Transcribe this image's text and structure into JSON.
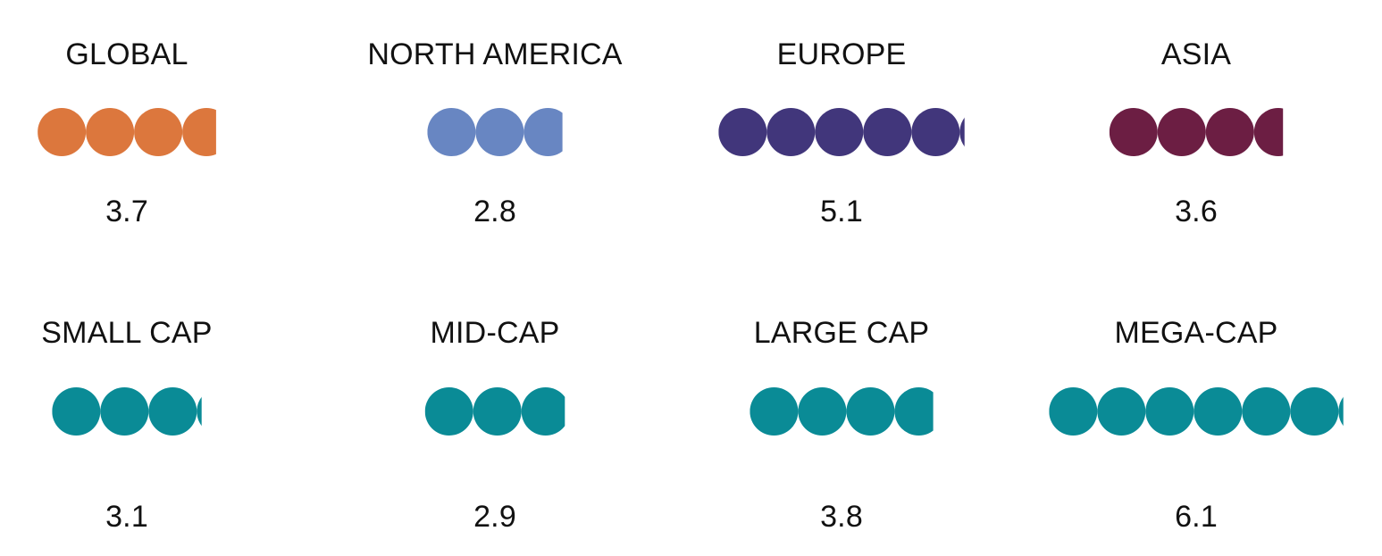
{
  "chart_data": {
    "type": "pictogram",
    "panels": [
      {
        "label": "GLOBAL",
        "value": 3.7,
        "value_label": "3.7",
        "color": "#DC773D"
      },
      {
        "label": "NORTH AMERICA",
        "value": 2.8,
        "value_label": "2.8",
        "color": "#6886C2"
      },
      {
        "label": "EUROPE",
        "value": 5.1,
        "value_label": "5.1",
        "color": "#41367B"
      },
      {
        "label": "ASIA",
        "value": 3.6,
        "value_label": "3.6",
        "color": "#6C1E43"
      },
      {
        "label": "SMALL CAP",
        "value": 3.1,
        "value_label": "3.1",
        "color": "#0A8B96"
      },
      {
        "label": "MID-CAP",
        "value": 2.9,
        "value_label": "2.9",
        "color": "#0A8B96"
      },
      {
        "label": "LARGE CAP",
        "value": 3.8,
        "value_label": "3.8",
        "color": "#0A8B96"
      },
      {
        "label": "MEGA-CAP",
        "value": 6.1,
        "value_label": "6.1",
        "color": "#0A8B96"
      }
    ]
  }
}
